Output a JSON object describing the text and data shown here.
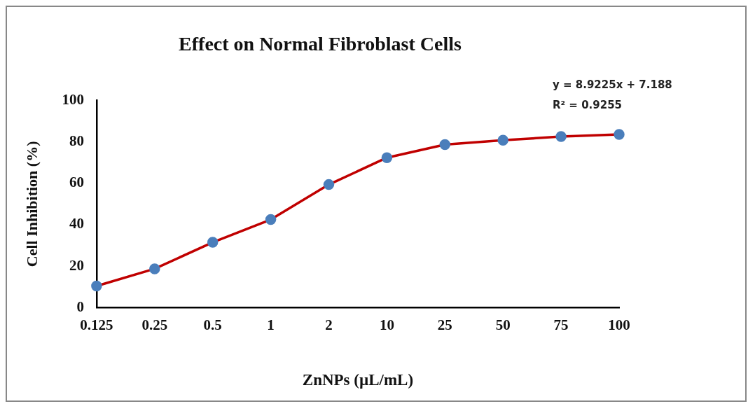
{
  "chart_data": {
    "type": "line",
    "title": "Effect on Normal Fibroblast Cells",
    "xlabel": "ZnNPs (µL/mL)",
    "ylabel": "Cell Inhibition (%)",
    "categories": [
      "0.125",
      "0.25",
      "0.5",
      "1",
      "2",
      "10",
      "25",
      "50",
      "75",
      "100"
    ],
    "series": [
      {
        "color": "#c00000",
        "colors": [
          "#4a7ebb",
          "#4a7ebb",
          "#4a7ebb",
          "#4a7ebb",
          "#4a7ebb",
          "#4a7ebb",
          "#4a7ebb",
          "#4a7ebb",
          "#4a7ebb",
          "#4a7ebb"
        ],
        "values": [
          10.4,
          18.7,
          31.5,
          42.5,
          59.4,
          72.4,
          78.7,
          80.8,
          82.6,
          83.6
        ]
      }
    ],
    "ylim": [
      0,
      100
    ],
    "yticks": [
      0,
      20,
      40,
      60,
      80,
      100
    ],
    "grid": false,
    "legend": false,
    "marker": "circle",
    "line_style": "solid",
    "annotations": [
      "y = 8.9225x + 7.188",
      "R² = 0.9255"
    ]
  }
}
